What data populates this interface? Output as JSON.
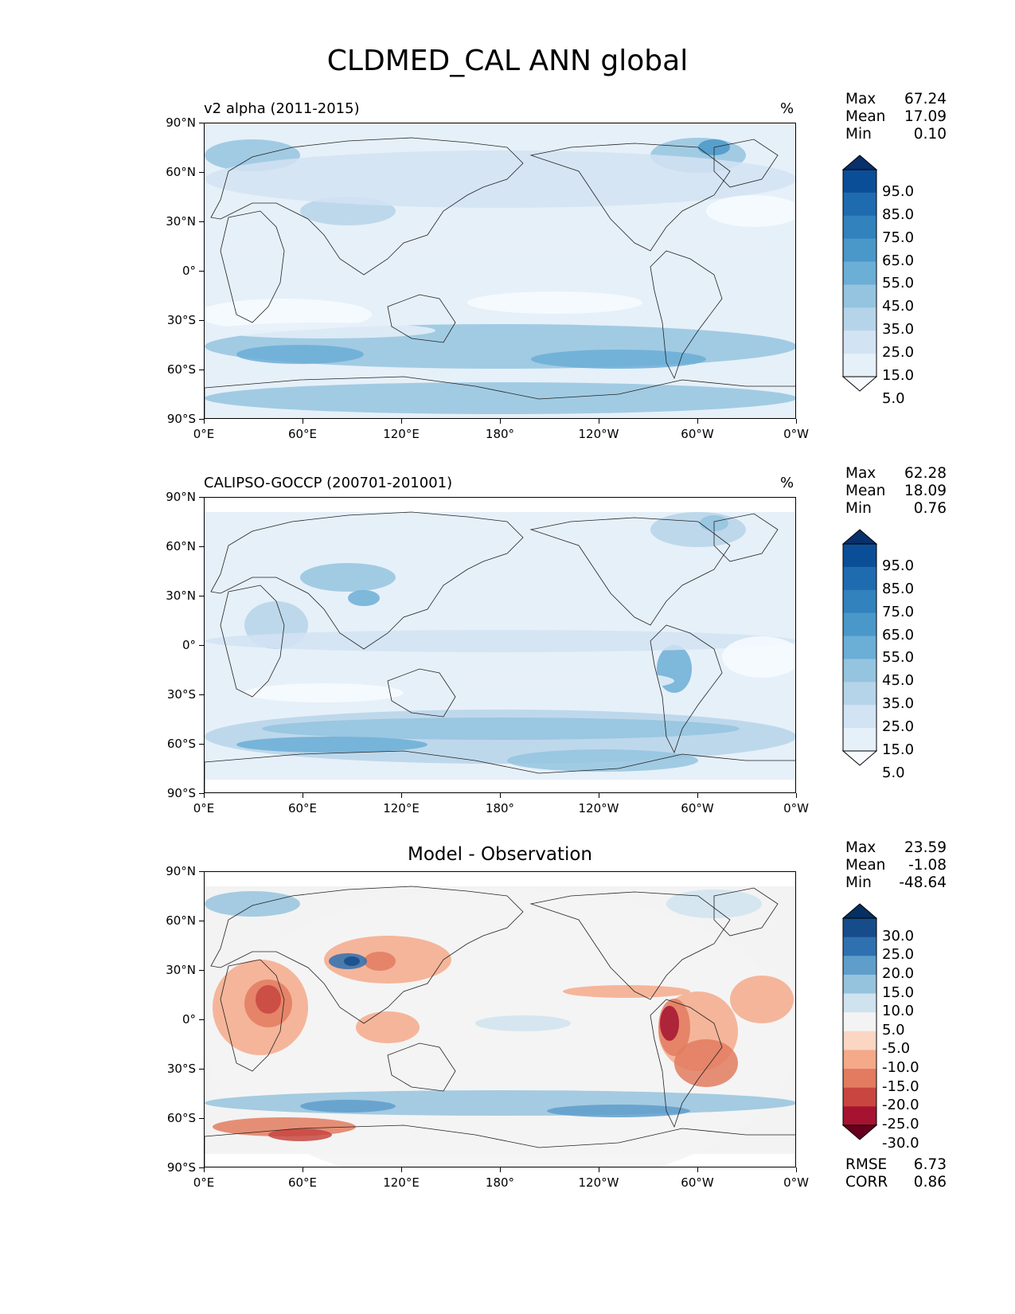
{
  "figure": {
    "title": "CLDMED_CAL ANN global"
  },
  "axis": {
    "lat_labels": [
      "90°N",
      "60°N",
      "30°N",
      "0°",
      "30°S",
      "60°S",
      "90°S"
    ],
    "lon_labels": [
      "0°E",
      "60°E",
      "120°E",
      "180°",
      "120°W",
      "60°W",
      "0°W"
    ]
  },
  "panels": [
    {
      "title_left": "v2 alpha (2011-2015)",
      "title_right": "%",
      "title_center": "",
      "stats": [
        {
          "label": "Max",
          "value": "67.24"
        },
        {
          "label": "Mean",
          "value": "17.09"
        },
        {
          "label": "Min",
          "value": "0.10"
        }
      ],
      "colorbar": {
        "labels": [
          "95.0",
          "85.0",
          "75.0",
          "65.0",
          "55.0",
          "45.0",
          "35.0",
          "25.0",
          "15.0",
          "5.0"
        ],
        "colors": [
          "#08306b",
          "#0b4e98",
          "#1f6bb0",
          "#3182bd",
          "#4a98c9",
          "#6baed6",
          "#94c4df",
          "#b6d4e9",
          "#d2e3f3",
          "#e6f0f9",
          "#f7fbff"
        ]
      },
      "footer_stats": []
    },
    {
      "title_left": "CALIPSO-GOCCP (200701-201001)",
      "title_right": "%",
      "title_center": "",
      "stats": [
        {
          "label": "Max",
          "value": "62.28"
        },
        {
          "label": "Mean",
          "value": "18.09"
        },
        {
          "label": "Min",
          "value": "0.76"
        }
      ],
      "colorbar": {
        "labels": [
          "95.0",
          "85.0",
          "75.0",
          "65.0",
          "55.0",
          "45.0",
          "35.0",
          "25.0",
          "15.0",
          "5.0"
        ],
        "colors": [
          "#08306b",
          "#0b4e98",
          "#1f6bb0",
          "#3182bd",
          "#4a98c9",
          "#6baed6",
          "#94c4df",
          "#b6d4e9",
          "#d2e3f3",
          "#e6f0f9",
          "#f7fbff"
        ]
      },
      "footer_stats": []
    },
    {
      "title_left": "",
      "title_right": "",
      "title_center": "Model - Observation",
      "stats": [
        {
          "label": "Max",
          "value": "23.59"
        },
        {
          "label": "Mean",
          "value": "-1.08"
        },
        {
          "label": "Min",
          "value": "-48.64"
        }
      ],
      "colorbar": {
        "labels": [
          "30.0",
          "25.0",
          "20.0",
          "15.0",
          "10.0",
          "5.0",
          "-5.0",
          "-10.0",
          "-15.0",
          "-20.0",
          "-25.0",
          "-30.0"
        ],
        "colors": [
          "#053061",
          "#164c8a",
          "#2f70b0",
          "#5f9dcb",
          "#95c3dd",
          "#cfe3ef",
          "#f3f3f3",
          "#fbd6c3",
          "#f4a989",
          "#e27b5f",
          "#c84540",
          "#a51330",
          "#67001f"
        ]
      },
      "footer_stats": [
        {
          "label": "RMSE",
          "value": "6.73"
        },
        {
          "label": "CORR",
          "value": "0.86"
        }
      ]
    }
  ]
}
